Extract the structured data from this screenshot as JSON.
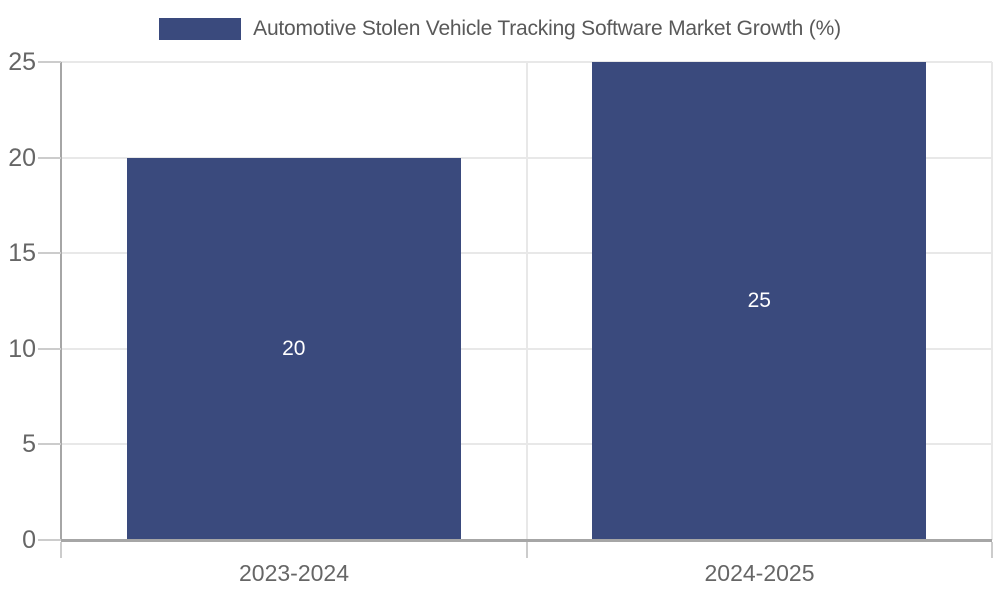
{
  "chart_data": {
    "type": "bar",
    "title": "Automotive Stolen Vehicle Tracking Software Market Growth (%)",
    "categories": [
      "2023-2024",
      "2024-2025"
    ],
    "series": [
      {
        "name": "Automotive Stolen Vehicle Tracking Software Market Growth (%)",
        "values": [
          20,
          25
        ]
      }
    ],
    "bar_value_labels": [
      "20",
      "25"
    ],
    "xlabel": "",
    "ylabel": "",
    "ylim": [
      0,
      25
    ],
    "yticks": [
      0,
      5,
      10,
      15,
      20,
      25
    ],
    "grid": true,
    "legend_position": "top-center",
    "colors": {
      "bar": "#3a4a7d",
      "grid": "#e8e8e8",
      "axis": "#a6a6a6",
      "tick": "#cccccc",
      "tick_label": "#666666",
      "title": "#595959",
      "value_label": "#ffffff",
      "background": "#ffffff"
    }
  }
}
